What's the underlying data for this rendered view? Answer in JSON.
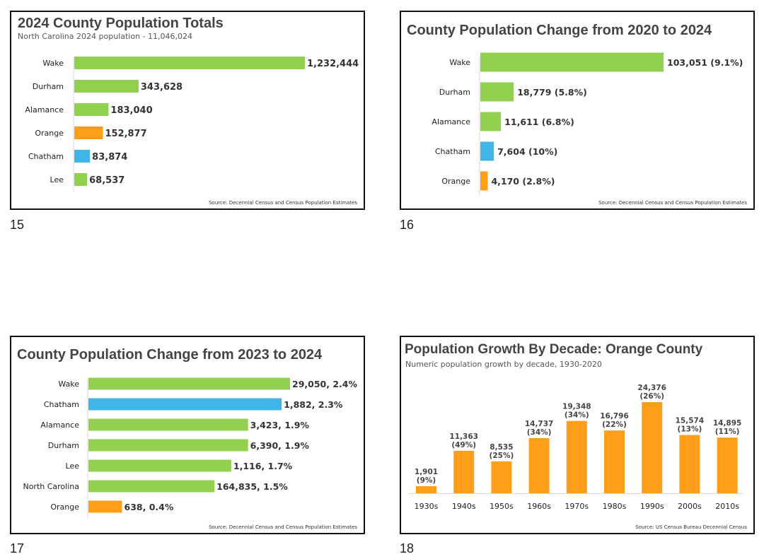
{
  "colors": {
    "green": "#92d050",
    "orange": "#ff9e1b",
    "blue": "#41b6e6",
    "axis": "#d9d9d9",
    "title": "#444444",
    "border": "#111111"
  },
  "slides": [
    {
      "page_number": "15",
      "title": "2024 County Population Totals",
      "subtitle": "North Carolina 2024 population - 11,046,024",
      "source": "Source: Decennial Census and Census Population Estimates"
    },
    {
      "page_number": "16",
      "title": "County Population Change from 2020 to 2024",
      "subtitle": "",
      "source": "Source: Decennial Census and Census Population Estimates"
    },
    {
      "page_number": "17",
      "title": "County Population Change from 2023 to 2024",
      "subtitle": "",
      "source": "Source: Decennial Census and Census Population Estimates"
    },
    {
      "page_number": "18",
      "title": "Population Growth By Decade: Orange County",
      "subtitle": "Numeric population growth by decade, 1930-2020",
      "source": "Source: US Census Bureau Decennial Census"
    }
  ],
  "chart_data": [
    {
      "type": "bar",
      "orientation": "horizontal",
      "title": "2024 County Population Totals",
      "categories": [
        "Wake",
        "Durham",
        "Alamance",
        "Orange",
        "Chatham",
        "Lee"
      ],
      "values": [
        1232444,
        343628,
        183040,
        152877,
        83874,
        68537
      ],
      "labels": [
        "1,232,444",
        "343,628",
        "183,040",
        "152,877",
        "83,874",
        "68,537"
      ],
      "colors": [
        "#92d050",
        "#92d050",
        "#92d050",
        "#ff9e1b",
        "#41b6e6",
        "#92d050"
      ],
      "xlim": [
        0,
        1232444
      ]
    },
    {
      "type": "bar",
      "orientation": "horizontal",
      "title": "County Population Change from 2020 to 2024",
      "categories": [
        "Wake",
        "Durham",
        "Alamance",
        "Chatham",
        "Orange"
      ],
      "values": [
        103051,
        18779,
        11611,
        7604,
        4170
      ],
      "percent_change": [
        9.1,
        5.8,
        6.8,
        10,
        2.8
      ],
      "labels": [
        "103,051 (9.1%)",
        "18,779 (5.8%)",
        "11,611 (6.8%)",
        "7,604 (10%)",
        "4,170 (2.8%)"
      ],
      "colors": [
        "#92d050",
        "#92d050",
        "#92d050",
        "#41b6e6",
        "#ff9e1b"
      ],
      "xlim": [
        0,
        103051
      ]
    },
    {
      "type": "bar",
      "orientation": "horizontal",
      "title": "County Population Change from 2023 to 2024",
      "categories": [
        "Wake",
        "Chatham",
        "Alamance",
        "Durham",
        "Lee",
        "North Carolina",
        "Orange"
      ],
      "values": [
        2.4,
        2.3,
        1.9,
        1.9,
        1.7,
        1.5,
        0.4
      ],
      "numeric_change": [
        29050,
        1882,
        3423,
        6390,
        1116,
        164835,
        638
      ],
      "labels": [
        "29,050, 2.4%",
        "1,882, 2.3%",
        "3,423, 1.9%",
        "6,390, 1.9%",
        "1,116, 1.7%",
        "164,835, 1.5%",
        "638, 0.4%"
      ],
      "colors": [
        "#92d050",
        "#41b6e6",
        "#92d050",
        "#92d050",
        "#92d050",
        "#92d050",
        "#ff9e1b"
      ],
      "xlim": [
        0,
        2.4
      ]
    },
    {
      "type": "bar",
      "orientation": "vertical",
      "title": "Population Growth By Decade: Orange County",
      "categories": [
        "1930s",
        "1940s",
        "1950s",
        "1960s",
        "1970s",
        "1980s",
        "1990s",
        "2000s",
        "2010s"
      ],
      "values": [
        1901,
        11363,
        8535,
        14737,
        19348,
        16796,
        24376,
        15574,
        14895
      ],
      "percent_change": [
        9,
        49,
        25,
        34,
        34,
        22,
        26,
        13,
        11
      ],
      "value_labels": [
        "1,901",
        "11,363",
        "8,535",
        "14,737",
        "19,348",
        "16,796",
        "24,376",
        "15,574",
        "14,895"
      ],
      "pct_labels": [
        "(9%)",
        "(49%)",
        "(25%)",
        "(34%)",
        "(34%)",
        "(22%)",
        "(26%)",
        "(13%)",
        "(11%)"
      ],
      "colors": [
        "#ff9e1b",
        "#ff9e1b",
        "#ff9e1b",
        "#ff9e1b",
        "#ff9e1b",
        "#ff9e1b",
        "#ff9e1b",
        "#ff9e1b",
        "#ff9e1b"
      ],
      "ylim": [
        0,
        24376
      ]
    }
  ]
}
